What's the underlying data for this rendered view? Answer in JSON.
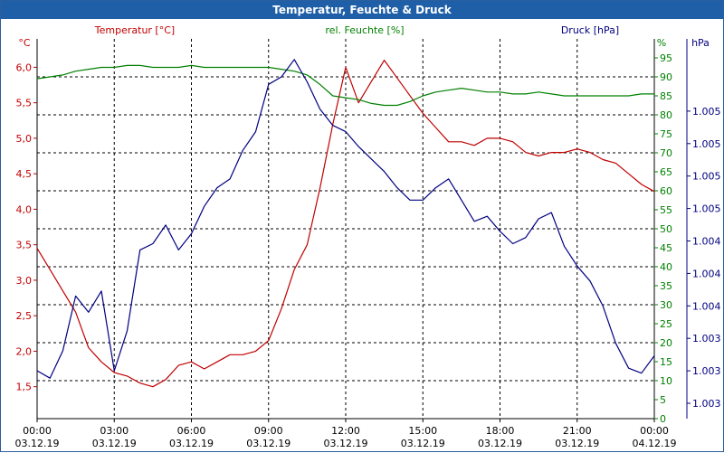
{
  "title": "Temperatur, Feuchte & Druck",
  "colors": {
    "temperature": "#c00000",
    "humidity": "#008000",
    "pressure": "#000080",
    "titlebar": "#1f5fa8"
  },
  "chart_data": {
    "type": "line",
    "title": "Temperatur, Feuchte & Druck",
    "x_axis": {
      "range": [
        "03.12.19 00:00",
        "04.12.19 00:00"
      ],
      "ticks": [
        {
          "time": "00:00",
          "date": "03.12.19"
        },
        {
          "time": "03:00",
          "date": "03.12.19"
        },
        {
          "time": "06:00",
          "date": "03.12.19"
        },
        {
          "time": "09:00",
          "date": "03.12.19"
        },
        {
          "time": "12:00",
          "date": "03.12.19"
        },
        {
          "time": "15:00",
          "date": "03.12.19"
        },
        {
          "time": "18:00",
          "date": "03.12.19"
        },
        {
          "time": "21:00",
          "date": "03.12.19"
        },
        {
          "time": "00:00",
          "date": "04.12.19"
        }
      ]
    },
    "axes": {
      "temperature": {
        "label": "Temperatur [°C]",
        "unit": "°C",
        "ylim": [
          1.05,
          6.4
        ],
        "ticks": [
          "1,5",
          "2,0",
          "2,5",
          "3,0",
          "3,5",
          "4,0",
          "4,5",
          "5,0",
          "5,5",
          "6,0"
        ]
      },
      "humidity": {
        "label": "rel. Feuchte [%]",
        "unit": "%",
        "ylim": [
          0,
          100
        ],
        "ticks": [
          "0",
          "5",
          "10",
          "15",
          "20",
          "25",
          "30",
          "35",
          "40",
          "45",
          "50",
          "55",
          "60",
          "65",
          "70",
          "75",
          "80",
          "85",
          "90",
          "95"
        ]
      },
      "pressure": {
        "label": "Druck [hPa]",
        "unit": "hPa",
        "ticks": [
          "1.003",
          "1.003",
          "1.003",
          "1.004",
          "1.004",
          "1.004",
          "1.005",
          "1.005",
          "1.005",
          "1.005"
        ]
      }
    },
    "grid": true,
    "series": [
      {
        "name": "Temperatur [°C]",
        "axis": "temperature",
        "x_hours": [
          0,
          0.5,
          1,
          1.5,
          2,
          2.5,
          3,
          3.5,
          4,
          4.5,
          5,
          5.5,
          6,
          6.5,
          7,
          7.5,
          8,
          8.5,
          9,
          9.5,
          10,
          10.5,
          11,
          11.5,
          12,
          12.5,
          13,
          13.5,
          14,
          14.5,
          15,
          15.5,
          16,
          16.5,
          17,
          17.5,
          18,
          18.5,
          19,
          19.5,
          20,
          20.5,
          21,
          21.5,
          22,
          22.5,
          23,
          23.5,
          24
        ],
        "values": [
          3.45,
          3.15,
          2.85,
          2.55,
          2.05,
          1.85,
          1.7,
          1.65,
          1.55,
          1.5,
          1.6,
          1.8,
          1.85,
          1.75,
          1.85,
          1.95,
          1.95,
          2.0,
          2.15,
          2.6,
          3.15,
          3.5,
          4.3,
          5.2,
          6.0,
          5.5,
          5.8,
          6.1,
          5.85,
          5.6,
          5.35,
          5.15,
          4.95,
          4.95,
          4.9,
          5.0,
          5.0,
          4.95,
          4.8,
          4.75,
          4.8,
          4.8,
          4.85,
          4.8,
          4.7,
          4.65,
          4.5,
          4.35,
          4.25
        ]
      },
      {
        "name": "rel. Feuchte [%]",
        "axis": "humidity",
        "x_hours": [
          0,
          0.5,
          1,
          1.5,
          2,
          2.5,
          3,
          3.5,
          4,
          4.5,
          5,
          5.5,
          6,
          6.5,
          7,
          7.5,
          8,
          8.5,
          9,
          9.5,
          10,
          10.5,
          11,
          11.5,
          12,
          12.5,
          13,
          13.5,
          14,
          14.5,
          15,
          15.5,
          16,
          16.5,
          17,
          17.5,
          18,
          18.5,
          19,
          19.5,
          20,
          20.5,
          21,
          21.5,
          22,
          22.5,
          23,
          23.5,
          24
        ],
        "values": [
          89.5,
          90,
          90.5,
          91.5,
          92,
          92.5,
          92.5,
          93,
          93,
          92.5,
          92.5,
          92.5,
          93,
          92.5,
          92.5,
          92.5,
          92.5,
          92.5,
          92.5,
          92,
          91.5,
          90.5,
          88,
          85,
          84.5,
          84,
          83,
          82.5,
          82.5,
          83.5,
          85,
          86,
          86.5,
          87,
          86.5,
          86,
          86,
          85.5,
          85.5,
          86,
          85.5,
          85,
          85,
          85,
          85,
          85,
          85,
          85.5,
          85.5
        ]
      },
      {
        "name": "Druck [hPa]",
        "axis": "pressure",
        "x_hours": [
          0,
          0.5,
          1,
          1.5,
          2,
          2.5,
          3,
          3.5,
          4,
          4.5,
          5,
          5.5,
          6,
          6.5,
          7,
          7.5,
          8,
          8.5,
          9,
          9.5,
          10,
          10.5,
          11,
          11.5,
          12,
          12.5,
          13,
          13.5,
          14,
          14.5,
          15,
          15.5,
          16,
          16.5,
          17,
          17.5,
          18,
          18.5,
          19,
          19.5,
          20,
          20.5,
          21,
          21.5,
          22,
          22.5,
          23,
          23.5,
          24
        ],
        "values": [
          1.00308,
          1.00302,
          1.00324,
          1.00368,
          1.00355,
          1.00372,
          1.00308,
          1.0034,
          1.00405,
          1.0041,
          1.00425,
          1.00405,
          1.00418,
          1.0044,
          1.00455,
          1.00462,
          1.00485,
          1.005,
          1.00538,
          1.00544,
          1.00558,
          1.0054,
          1.00518,
          1.00505,
          1.005,
          1.00488,
          1.00478,
          1.00468,
          1.00455,
          1.00445,
          1.00445,
          1.00455,
          1.00462,
          1.00445,
          1.00428,
          1.00432,
          1.0042,
          1.0041,
          1.00415,
          1.0043,
          1.00435,
          1.00408,
          1.00392,
          1.0038,
          1.0036,
          1.0033,
          1.0031,
          1.00306,
          1.0032
        ]
      }
    ]
  }
}
